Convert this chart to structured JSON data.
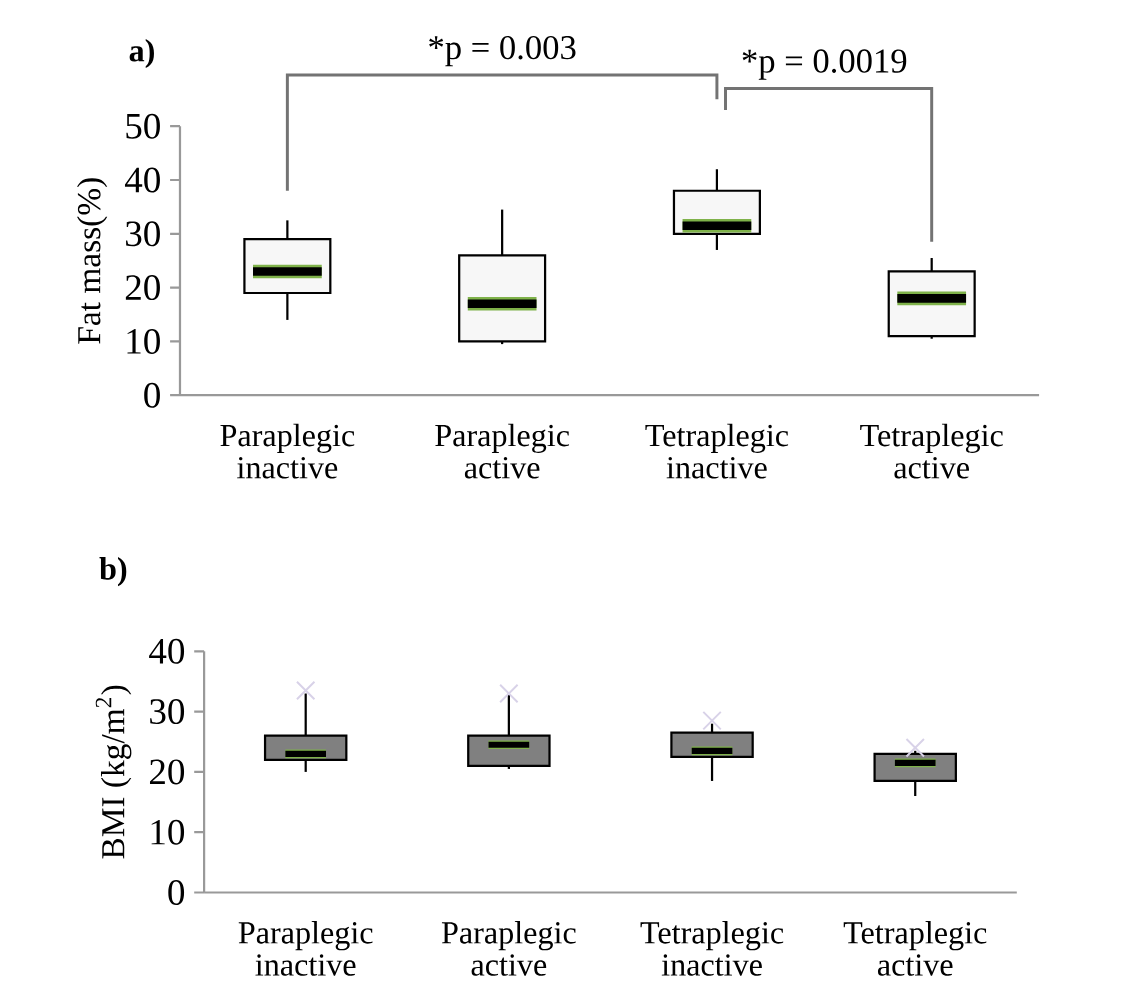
{
  "chart_data": [
    {
      "type": "box",
      "ylabel": "Fat mass(%)",
      "categories": [
        "Paraplegic inactive",
        "Paraplegic active",
        "Tetraplegic inactive",
        "Tetraplegic active"
      ],
      "color": "#f7f7f7",
      "ylim": [
        0,
        50
      ],
      "yticks": [
        0,
        10,
        20,
        30,
        40,
        50
      ],
      "boxes": [
        {
          "low": 14,
          "q1": 19,
          "median": 23,
          "q3": 29,
          "high": 32.5
        },
        {
          "low": 9.5,
          "q1": 10,
          "median": 17,
          "q3": 26,
          "high": 34.5
        },
        {
          "low": 27,
          "q1": 30,
          "median": 31.5,
          "q3": 38,
          "high": 42
        },
        {
          "low": 10.5,
          "q1": 11,
          "median": 18,
          "q3": 23,
          "high": 25.5
        }
      ],
      "annotations": [
        "a)",
        "*p = 0.003",
        "*p = 0.0019"
      ]
    },
    {
      "type": "box",
      "ylabel": "BMI (kg/m$^{2}$)",
      "categories": [
        "Paraplegic inactive",
        "Paraplegic active",
        "Tetraplegic inactive",
        "Tetraplegic active"
      ],
      "color": "#808080",
      "ylim": [
        0,
        40
      ],
      "yticks": [
        0,
        10,
        20,
        30,
        40
      ],
      "boxes": [
        {
          "low": 20,
          "q1": 22,
          "median": 23,
          "q3": 26,
          "high": 33,
          "outliers": [
            33.5
          ]
        },
        {
          "low": 20.5,
          "q1": 21,
          "median": 24.5,
          "q3": 26,
          "high": 33,
          "outliers": [
            33
          ]
        },
        {
          "low": 18.5,
          "q1": 22.5,
          "median": 23.5,
          "q3": 26.5,
          "high": 28,
          "outliers": [
            28.5
          ]
        },
        {
          "low": 16,
          "q1": 18.5,
          "median": 21.5,
          "q3": 23,
          "high": 23.5,
          "outliers": [
            24
          ]
        }
      ],
      "annotations": [
        "b)"
      ]
    }
  ]
}
